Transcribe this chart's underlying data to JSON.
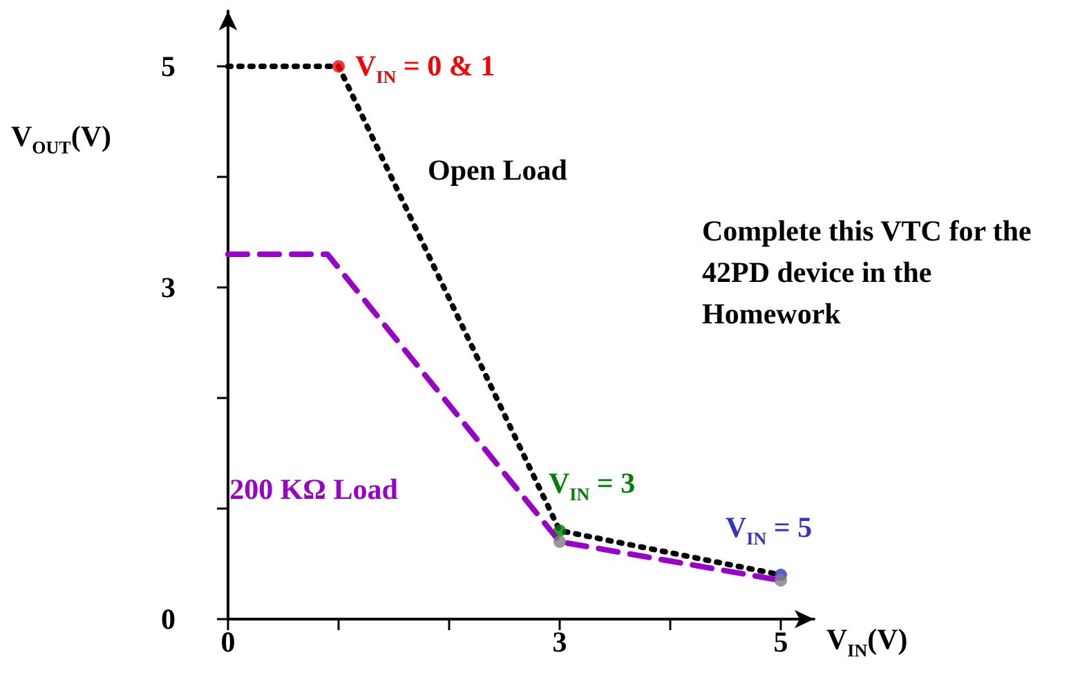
{
  "chart_data": {
    "type": "line",
    "xlabel": "V$_{IN}$(V)",
    "ylabel": "V$_{OUT}$(V)",
    "xlim": [
      0,
      5.3
    ],
    "ylim": [
      0,
      5.5
    ],
    "xticks": [
      0,
      {
        "value": 1,
        "label": null
      },
      {
        "value": 2,
        "label": null
      },
      3,
      {
        "value": 4,
        "label": null
      },
      5
    ],
    "yticks": [
      0,
      {
        "value": 1,
        "label": null
      },
      {
        "value": 2,
        "label": null
      },
      3,
      {
        "value": 4,
        "label": null
      },
      5
    ],
    "grid": false,
    "legend": false,
    "series": [
      {
        "name": "Open Load",
        "color": "#000000",
        "x": [
          0,
          1,
          3,
          5
        ],
        "values": [
          5,
          5,
          0.8,
          0.4
        ],
        "line_style": "dotted",
        "marker": "none"
      },
      {
        "name": "200 KΩ Load",
        "color": "#9900cc",
        "x": [
          0,
          0.9,
          3,
          5
        ],
        "values": [
          3.3,
          3.3,
          0.7,
          0.35
        ],
        "line_style": "dashed",
        "marker": "none"
      },
      {
        "type": "scatter",
        "x": [
          1,
          3,
          3,
          5,
          5
        ],
        "values": [
          5,
          0.8,
          0.7,
          0.4,
          0.35
        ],
        "colors": [
          "#ff0000",
          "#008000",
          "#808080",
          "#3333cc",
          "#808080"
        ],
        "marker": "circle"
      }
    ],
    "annotations": [
      {
        "text": "V$_{IN}$ = 0 & 1",
        "x": 1,
        "y": 5
      },
      {
        "text": "V$_{IN}$ = 3",
        "x": 3,
        "y": 0.8
      },
      {
        "text": "V$_{IN}$ = 5",
        "x": 5,
        "y": 0.4
      },
      "Complete this VTC for the 42PD device in the Homework"
    ]
  }
}
